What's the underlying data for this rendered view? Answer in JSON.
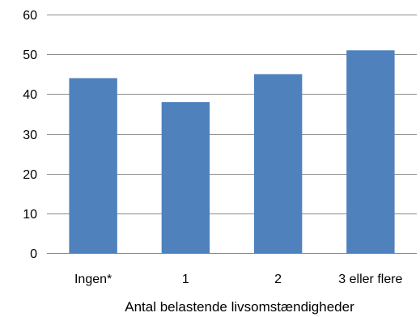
{
  "chart_data": {
    "type": "bar",
    "categories": [
      "Ingen*",
      "1",
      "2",
      "3 eller flere"
    ],
    "values": [
      44,
      38,
      45,
      51
    ],
    "xlabel": "Antal belastende livsomstændigheder",
    "ylabel": "",
    "ylim": [
      0,
      60
    ],
    "yticks": [
      0,
      10,
      20,
      30,
      40,
      50,
      60
    ],
    "grid": true,
    "bar_color": "#4f81bd",
    "grid_color": "#8c8c8c"
  }
}
